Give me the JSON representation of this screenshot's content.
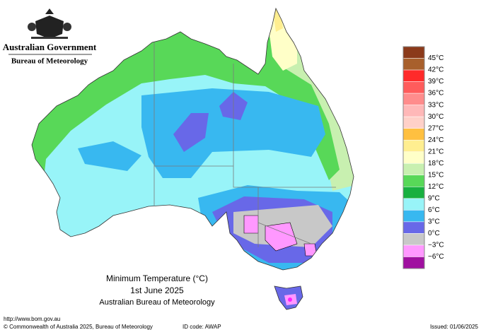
{
  "header": {
    "government": "Australian Government",
    "agency": "Bureau of Meteorology"
  },
  "map": {
    "title": "Minimum Temperature (°C)",
    "date": "1st June 2025",
    "source": "Australian Bureau of Meteorology"
  },
  "legend": {
    "labels": [
      "45°C",
      "42°C",
      "39°C",
      "36°C",
      "33°C",
      "30°C",
      "27°C",
      "24°C",
      "21°C",
      "18°C",
      "15°C",
      "12°C",
      "9°C",
      "6°C",
      "3°C",
      "0°C",
      "−3°C",
      "−6°C"
    ],
    "colors": [
      "#8b3a1a",
      "#a8602c",
      "#ff2a2a",
      "#ff5c5c",
      "#ff8c8c",
      "#ffb8b8",
      "#ffd0c8",
      "#ffc040",
      "#ffee90",
      "#ffffc8",
      "#c8f0b0",
      "#58d858",
      "#18b040",
      "#98f4f8",
      "#38b8f0",
      "#6868e8",
      "#c8c8c8",
      "#ff98ff",
      "#a010a0"
    ]
  },
  "footer": {
    "url": "http://www.bom.gov.au",
    "copyright": "© Commonwealth of Australia 2025, Bureau of Meteorology",
    "id_code": "ID code: AWAP",
    "issued": "Issued: 01/06/2025"
  }
}
